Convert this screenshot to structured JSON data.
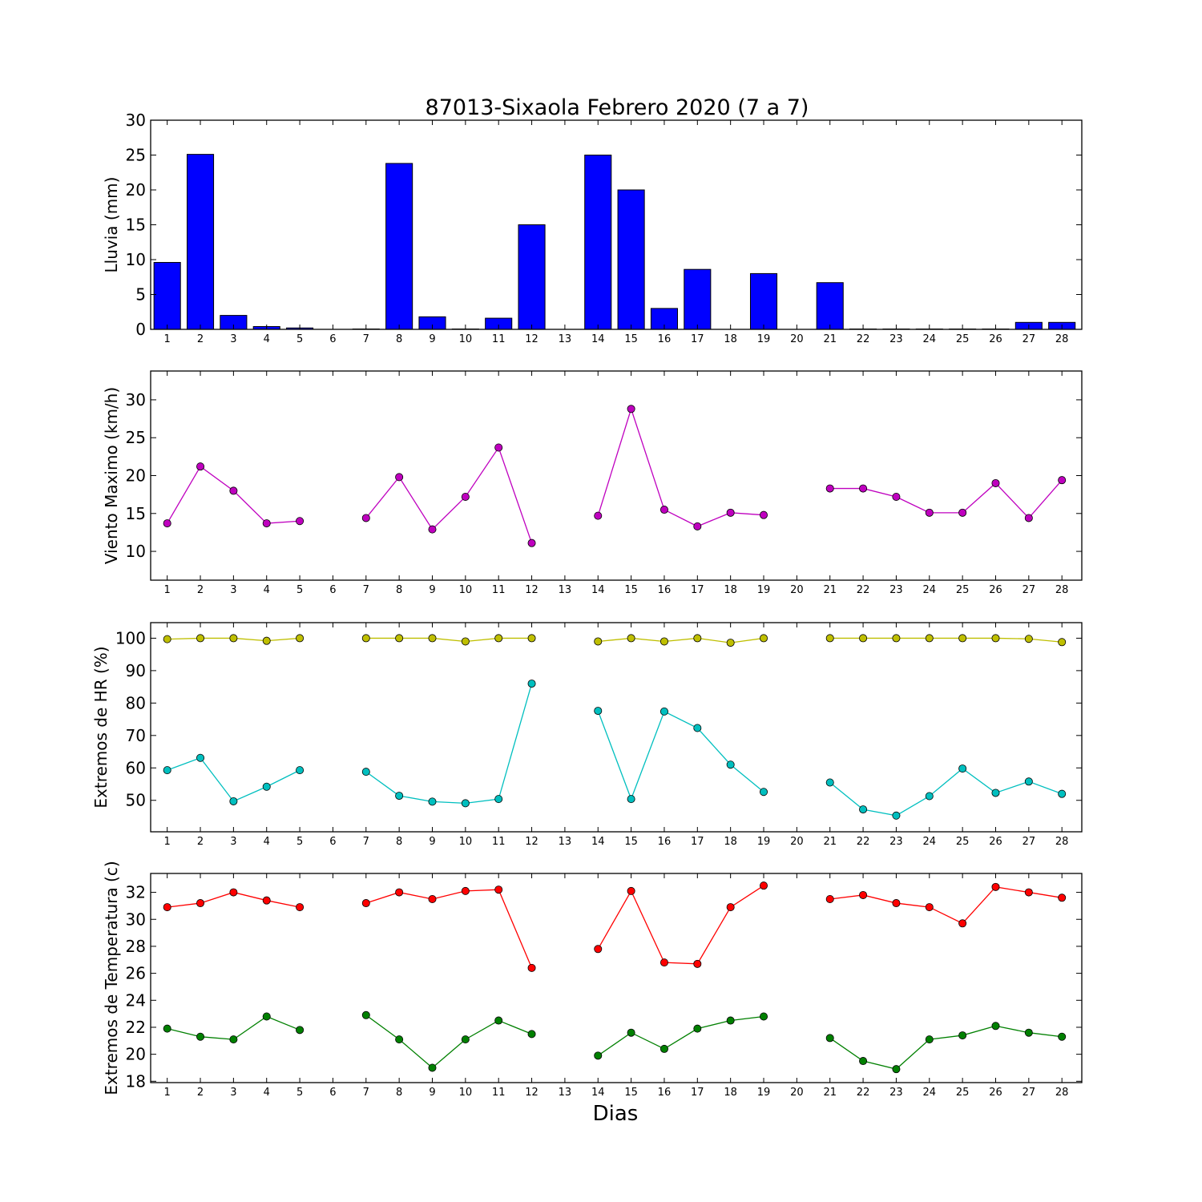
{
  "figure": {
    "title": "87013-Sixaola Febrero 2020  (7 a 7)",
    "xlabel": "Dias"
  },
  "colors": {
    "lluvia": "#0000ff",
    "viento": "#bf00bf",
    "hr_max": "#bfbf00",
    "hr_min": "#00bfbf",
    "temp_max": "#ff0000",
    "temp_min": "#008000"
  },
  "chart_data": [
    {
      "type": "bar",
      "ylabel": "Lluvia (mm)",
      "categories": [
        "1",
        "2",
        "3",
        "4",
        "5",
        "6",
        "7",
        "8",
        "9",
        "10",
        "11",
        "12",
        "13",
        "14",
        "15",
        "16",
        "17",
        "18",
        "19",
        "20",
        "21",
        "22",
        "23",
        "24",
        "25",
        "26",
        "27",
        "28"
      ],
      "values": [
        9.6,
        25.1,
        2.0,
        0.4,
        0.2,
        0,
        0.05,
        23.8,
        1.8,
        0.05,
        1.6,
        15.0,
        0,
        25.0,
        20.0,
        3.0,
        8.6,
        0,
        8.0,
        0,
        6.7,
        0.05,
        0.05,
        0.05,
        0.05,
        0.05,
        1.0,
        1.0
      ],
      "ylim": [
        0,
        30
      ],
      "yticks": [
        0,
        5,
        10,
        15,
        20,
        25,
        30
      ],
      "grid": false
    },
    {
      "type": "line",
      "ylabel": "Viento Maximo (km/h)",
      "categories": [
        "1",
        "2",
        "3",
        "4",
        "5",
        "6",
        "7",
        "8",
        "9",
        "10",
        "11",
        "12",
        "13",
        "14",
        "15",
        "16",
        "17",
        "18",
        "19",
        "20",
        "21",
        "22",
        "23",
        "24",
        "25",
        "26",
        "27",
        "28"
      ],
      "series": [
        {
          "color": "viento",
          "values": [
            13.7,
            21.2,
            18.0,
            13.7,
            14.0,
            null,
            14.4,
            19.8,
            12.9,
            17.2,
            23.7,
            11.1,
            null,
            14.7,
            28.8,
            15.5,
            13.3,
            15.1,
            14.8,
            null,
            18.3,
            18.3,
            17.2,
            15.1,
            15.1,
            19.0,
            14.4,
            19.4
          ]
        }
      ],
      "ylim": [
        6.2,
        33.8
      ],
      "yticks": [
        10,
        15,
        20,
        25,
        30
      ],
      "grid": false
    },
    {
      "type": "line",
      "ylabel": "Extremos de HR (%)",
      "categories": [
        "1",
        "2",
        "3",
        "4",
        "5",
        "6",
        "7",
        "8",
        "9",
        "10",
        "11",
        "12",
        "13",
        "14",
        "15",
        "16",
        "17",
        "18",
        "19",
        "20",
        "21",
        "22",
        "23",
        "24",
        "25",
        "26",
        "27",
        "28"
      ],
      "series": [
        {
          "color": "hr_max",
          "values": [
            99.7,
            100,
            100,
            99.2,
            100,
            null,
            100,
            100,
            100,
            99.0,
            100,
            100,
            null,
            99.0,
            100,
            99.0,
            100,
            98.6,
            100,
            null,
            100,
            100,
            100,
            100,
            100,
            100,
            99.8,
            98.8
          ]
        },
        {
          "color": "hr_min",
          "values": [
            59.3,
            63.1,
            49.7,
            54.2,
            59.3,
            null,
            58.8,
            51.4,
            49.6,
            49.1,
            50.4,
            86.0,
            null,
            77.6,
            50.4,
            77.4,
            72.3,
            61.0,
            52.6,
            null,
            55.5,
            47.2,
            45.3,
            51.3,
            59.8,
            52.3,
            55.8,
            52.0
          ]
        }
      ],
      "ylim": [
        40.3,
        104.8
      ],
      "yticks": [
        50,
        60,
        70,
        80,
        90,
        100
      ],
      "grid": false
    },
    {
      "type": "line",
      "ylabel": "Extremos de Temperatura (c)",
      "categories": [
        "1",
        "2",
        "3",
        "4",
        "5",
        "6",
        "7",
        "8",
        "9",
        "10",
        "11",
        "12",
        "13",
        "14",
        "15",
        "16",
        "17",
        "18",
        "19",
        "20",
        "21",
        "22",
        "23",
        "24",
        "25",
        "26",
        "27",
        "28"
      ],
      "series": [
        {
          "color": "temp_max",
          "values": [
            30.9,
            31.2,
            32.0,
            31.4,
            30.9,
            null,
            31.2,
            32.0,
            31.5,
            32.1,
            32.2,
            26.4,
            null,
            27.8,
            32.1,
            26.8,
            26.7,
            30.9,
            32.5,
            null,
            31.5,
            31.8,
            31.2,
            30.9,
            29.7,
            32.4,
            32.0,
            31.6
          ]
        },
        {
          "color": "temp_min",
          "values": [
            21.9,
            21.3,
            21.1,
            22.8,
            21.8,
            null,
            22.9,
            21.1,
            19.0,
            21.1,
            22.5,
            21.5,
            null,
            19.9,
            21.6,
            20.4,
            21.9,
            22.5,
            22.8,
            null,
            21.2,
            19.5,
            18.9,
            21.1,
            21.4,
            22.1,
            21.6,
            21.3
          ]
        }
      ],
      "ylim": [
        17.9,
        33.4
      ],
      "yticks": [
        18,
        20,
        22,
        24,
        26,
        28,
        30,
        32
      ],
      "grid": false
    }
  ]
}
